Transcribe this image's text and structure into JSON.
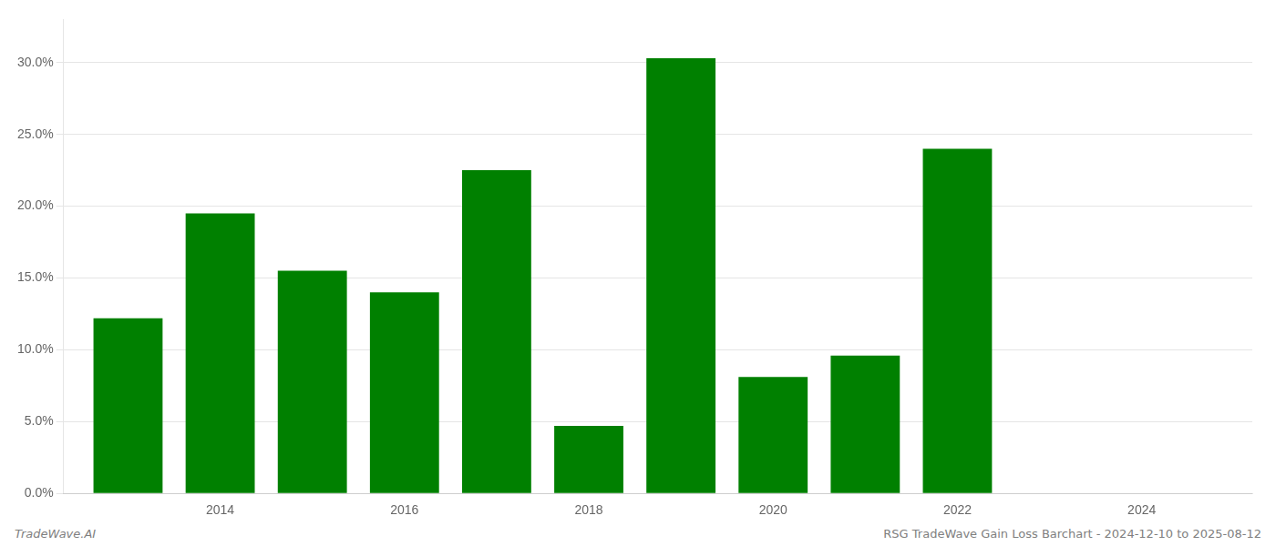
{
  "chart_data": {
    "type": "bar",
    "title": "RSG TradeWave Gain Loss Barchart - 2024-12-10 to 2025-08-12",
    "annotations": [
      "TradeWave.AI"
    ],
    "x": [
      2013,
      2014,
      2015,
      2016,
      2017,
      2018,
      2019,
      2020,
      2021,
      2022,
      2023
    ],
    "values": [
      0.122,
      0.195,
      0.155,
      0.14,
      0.225,
      0.047,
      0.303,
      0.081,
      0.096,
      0.24,
      0.0
    ],
    "color": "#008000",
    "xlim": [
      2012.3,
      2025.2
    ],
    "xticks": [
      2014,
      2016,
      2018,
      2020,
      2022,
      2024
    ],
    "ylim": [
      0,
      0.33
    ],
    "yticks": [
      {
        "value": 0.0,
        "label": "0.0%"
      },
      {
        "value": 0.05,
        "label": "5.0%"
      },
      {
        "value": 0.1,
        "label": "10.0%"
      },
      {
        "value": 0.15,
        "label": "15.0%"
      },
      {
        "value": 0.2,
        "label": "20.0%"
      },
      {
        "value": 0.25,
        "label": "25.0%"
      },
      {
        "value": 0.3,
        "label": "30.0%"
      }
    ],
    "grid": "y"
  }
}
